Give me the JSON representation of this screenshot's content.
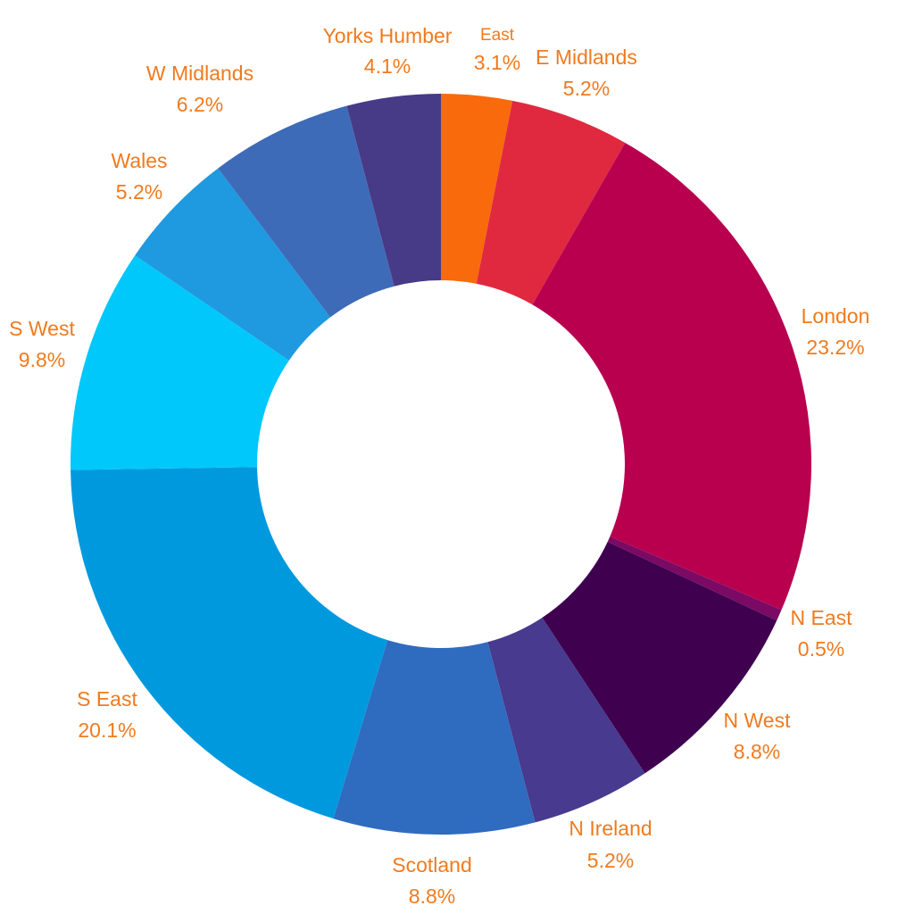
{
  "chart_data": {
    "type": "pie",
    "donut": true,
    "title": "",
    "label_color": "#f07a1e",
    "slices": [
      {
        "label": "East",
        "value": 3.1,
        "value_label": "3.1%",
        "color": "#f86a0c"
      },
      {
        "label": "E Midlands",
        "value": 5.2,
        "value_label": "5.2%",
        "color": "#e0293f"
      },
      {
        "label": "London",
        "value": 23.2,
        "value_label": "23.2%",
        "color": "#b8004f"
      },
      {
        "label": "N East",
        "value": 0.5,
        "value_label": "0.5%",
        "color": "#7a0a63"
      },
      {
        "label": "N West",
        "value": 8.8,
        "value_label": "8.8%",
        "color": "#3f0050"
      },
      {
        "label": "N Ireland",
        "value": 5.2,
        "value_label": "5.2%",
        "color": "#483a8e"
      },
      {
        "label": "Scotland",
        "value": 8.8,
        "value_label": "8.8%",
        "color": "#2f6bbf"
      },
      {
        "label": "S East",
        "value": 20.1,
        "value_label": "20.1%",
        "color": "#0199de"
      },
      {
        "label": "S West",
        "value": 9.8,
        "value_label": "9.8%",
        "color": "#00c8fa"
      },
      {
        "label": "Wales",
        "value": 5.2,
        "value_label": "5.2%",
        "color": "#1f9ae0"
      },
      {
        "label": "W Midlands",
        "value": 6.2,
        "value_label": "6.2%",
        "color": "#3e6bb7"
      },
      {
        "label": "Yorks Humber",
        "value": 4.1,
        "value_label": "4.1%",
        "color": "#473a87"
      }
    ]
  }
}
